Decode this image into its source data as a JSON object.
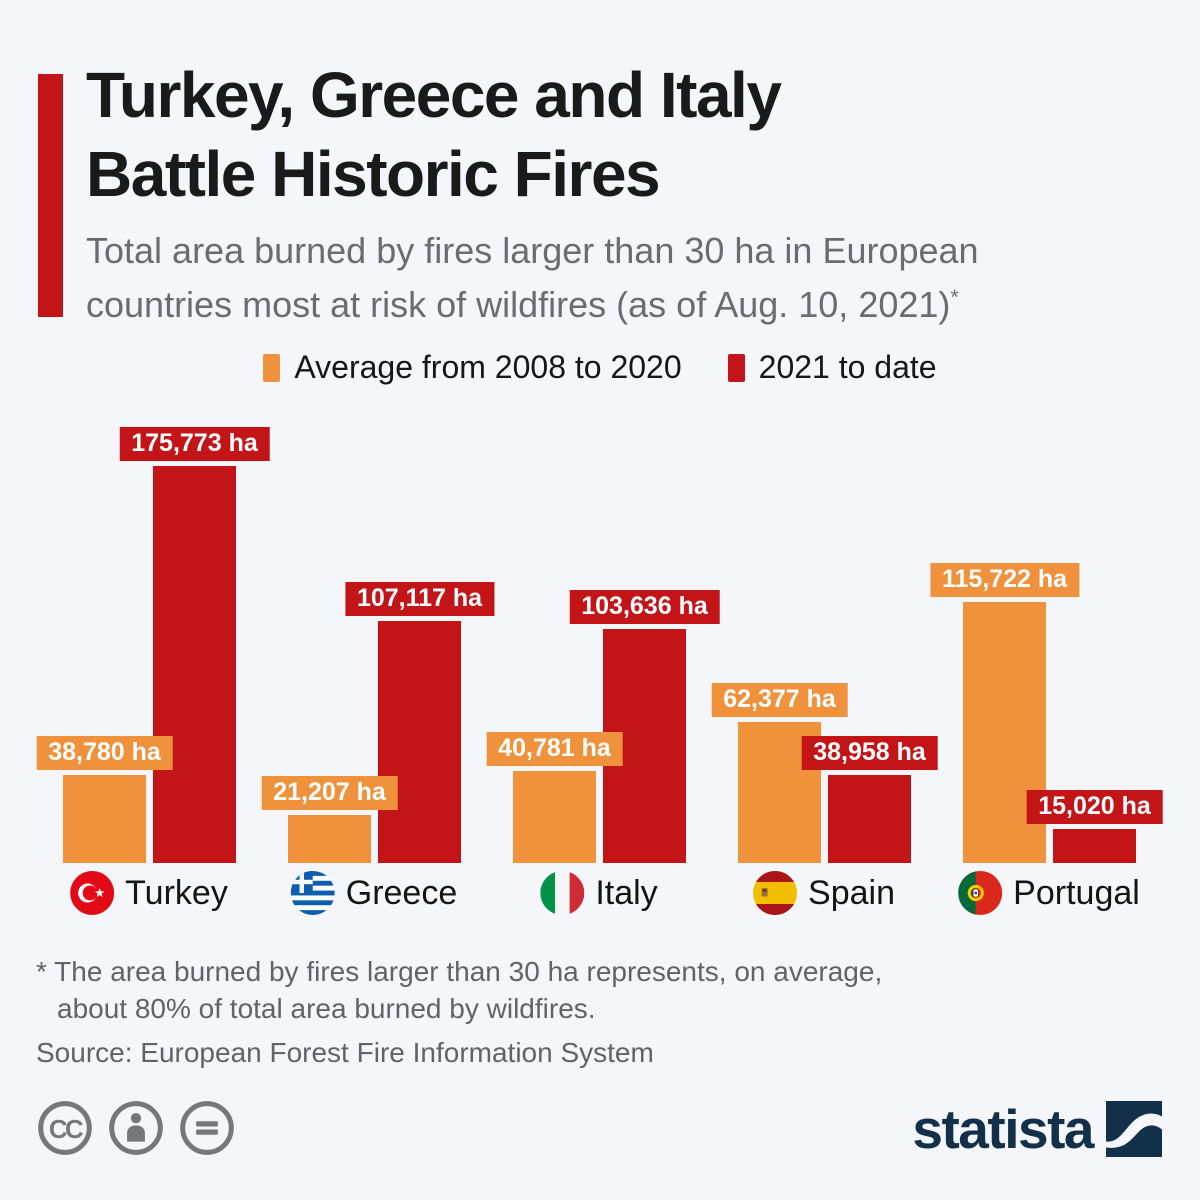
{
  "header": {
    "title_lines": [
      "Turkey, Greece and Italy",
      "Battle Historic Fires"
    ],
    "subtitle_lines": [
      "Total area burned by fires larger than 30 ha in European",
      "countries most at risk of wildfires (as of Aug. 10, 2021)"
    ],
    "subtitle_sup": "*",
    "accent_color": "#c31418"
  },
  "chart_data": {
    "type": "bar",
    "title": "Total area burned by fires larger than 30 ha in European countries most at risk of wildfires (as of Aug. 10, 2021)",
    "categories": [
      "Turkey",
      "Greece",
      "Italy",
      "Spain",
      "Portugal"
    ],
    "series": [
      {
        "name": "Average from 2008 to 2020",
        "color": "#ef923b",
        "values": [
          38780,
          21207,
          40781,
          62377,
          115722
        ]
      },
      {
        "name": "2021 to date",
        "color": "#c31418",
        "values": [
          175773,
          107117,
          103636,
          38958,
          15020
        ]
      }
    ],
    "unit": "ha",
    "unit_suffix": " ha",
    "value_labels": true,
    "legend_position": "top-center",
    "grid": false,
    "y_axis": "hidden (values shown as labels on bars)",
    "ylim": [
      0,
      180000
    ]
  },
  "footnote_lines": [
    "* The area burned by fires larger than 30 ha represents, on average,",
    "about 80% of total area burned by wildfires."
  ],
  "source": "Source: European Forest Fire Information System",
  "brand": {
    "name": "statista",
    "color": "#12304a"
  },
  "license": {
    "icons": [
      "cc",
      "attribution",
      "equals"
    ],
    "color": "#75787b"
  },
  "colors": {
    "background": "#f4f6fa",
    "orange": "#ef923b",
    "red": "#c31418",
    "title": "#1a1a1a",
    "subtitle_gray": "#686d72",
    "footnote_gray": "#5e646a"
  }
}
